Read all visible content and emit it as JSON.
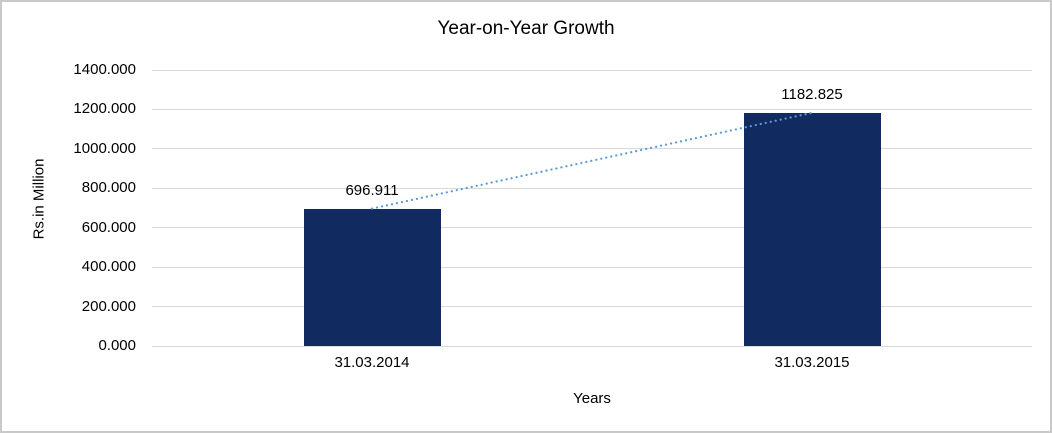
{
  "window": {
    "background": "#ffffff",
    "frame_border_color": "#c9c9c9"
  },
  "chart_data": {
    "type": "bar",
    "title": "Year-on-Year Growth",
    "xlabel": "Years",
    "ylabel": "Rs.in Million",
    "categories": [
      "31.03.2014",
      "31.03.2015"
    ],
    "series": [
      {
        "name": "Rs.in Million",
        "values": [
          696.911,
          1182.825
        ]
      }
    ],
    "data_labels": [
      "696.911",
      "1182.825"
    ],
    "ylim": [
      0,
      1400
    ],
    "ytick_step": 200,
    "ytick_labels": [
      "0.000",
      "200.000",
      "400.000",
      "600.000",
      "800.000",
      "1000.000",
      "1200.000",
      "1400.000"
    ],
    "grid": true,
    "legend": "none",
    "bar_color": "#112a60",
    "gridline_color": "#d9d9d9",
    "trendline": {
      "style": "dotted",
      "color": "#5b9bd5",
      "connects": "bar tops from 696.911 to 1182.825"
    }
  }
}
